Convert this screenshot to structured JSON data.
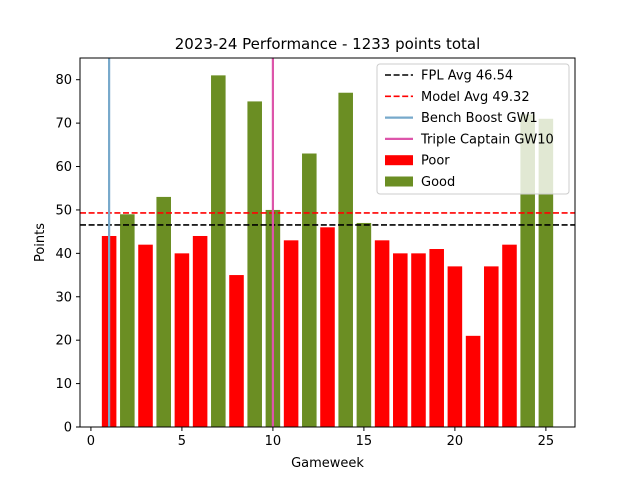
{
  "chart_data": {
    "type": "bar",
    "title": "2023-24 Performance - 1233 points total",
    "xlabel": "Gameweek",
    "ylabel": "Points",
    "xlim": [
      -0.6,
      26.6
    ],
    "ylim": [
      0,
      85
    ],
    "xticks": [
      0,
      5,
      10,
      15,
      20,
      25
    ],
    "yticks": [
      0,
      10,
      20,
      30,
      40,
      50,
      60,
      70,
      80
    ],
    "grid": false,
    "legend_position": "top-right",
    "series": [
      {
        "name": "Poor",
        "color": "#ff0000",
        "x": [
          1,
          3,
          5,
          6,
          8,
          11,
          13,
          16,
          17,
          18,
          19,
          20,
          21,
          22,
          23
        ],
        "values": [
          44,
          42,
          40,
          44,
          35,
          43,
          46,
          43,
          40,
          40,
          41,
          37,
          21,
          37,
          42
        ]
      },
      {
        "name": "Good",
        "color": "#6b8e23",
        "x": [
          2,
          4,
          7,
          9,
          10,
          12,
          14,
          15,
          24,
          25
        ],
        "values": [
          49,
          53,
          81,
          75,
          50,
          63,
          77,
          47,
          72,
          71
        ]
      }
    ],
    "hlines": [
      {
        "name": "FPL Avg 46.54",
        "y": 46.54,
        "color": "#000000",
        "style": "dashed"
      },
      {
        "name": "Model Avg 49.32",
        "y": 49.32,
        "color": "#ff0000",
        "style": "dashed"
      }
    ],
    "vlines": [
      {
        "name": "Bench Boost GW1",
        "x": 1,
        "color": "#77a9cb",
        "style": "solid"
      },
      {
        "name": "Triple Captain GW10",
        "x": 10,
        "color": "#dd55aa",
        "style": "solid"
      }
    ],
    "legend_order": [
      "FPL Avg 46.54",
      "Model Avg 49.32",
      "Bench Boost GW1",
      "Triple Captain GW10",
      "Poor",
      "Good"
    ]
  }
}
